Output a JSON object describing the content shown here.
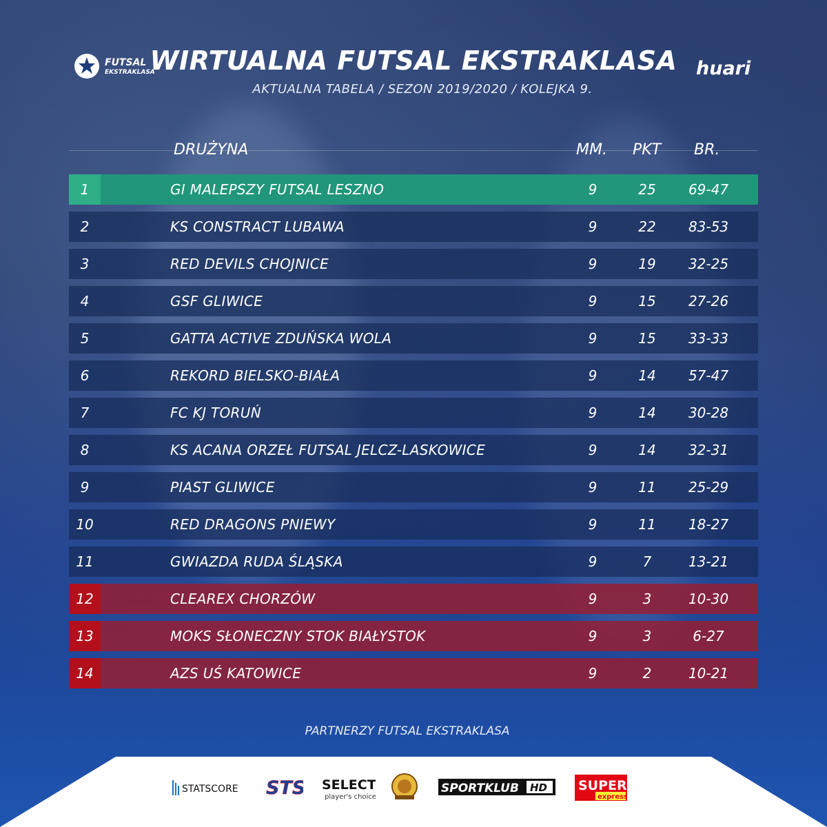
{
  "brand": {
    "league_logo_text_top": "FUTSAL",
    "league_logo_text_bottom": "EKSTRAKLASA",
    "sponsor_logo_text": "huari"
  },
  "header": {
    "title": "WIRTUALNA FUTSAL EKSTRAKLASA",
    "subtitle": "AKTUALNA TABELA  /  SEZON 2019/2020  /  KOLEJKA 9."
  },
  "table": {
    "columns": {
      "team": "DRUŻYNA",
      "mm": "MM.",
      "pkt": "PKT",
      "br": "BR."
    },
    "rows": [
      {
        "pos": "1",
        "team": "GI MALEPSZY FUTSAL LESZNO",
        "mm": "9",
        "pkt": "25",
        "br": "69-47",
        "zone": "top"
      },
      {
        "pos": "2",
        "team": "KS CONSTRACT LUBAWA",
        "mm": "9",
        "pkt": "22",
        "br": "83-53",
        "zone": "mid"
      },
      {
        "pos": "3",
        "team": "RED DEVILS CHOJNICE",
        "mm": "9",
        "pkt": "19",
        "br": "32-25",
        "zone": "mid"
      },
      {
        "pos": "4",
        "team": "GSF GLIWICE",
        "mm": "9",
        "pkt": "15",
        "br": "27-26",
        "zone": "mid"
      },
      {
        "pos": "5",
        "team": "GATTA ACTIVE ZDUŃSKA WOLA",
        "mm": "9",
        "pkt": "15",
        "br": "33-33",
        "zone": "mid"
      },
      {
        "pos": "6",
        "team": "REKORD BIELSKO-BIAŁA",
        "mm": "9",
        "pkt": "14",
        "br": "57-47",
        "zone": "mid"
      },
      {
        "pos": "7",
        "team": "FC KJ TORUŃ",
        "mm": "9",
        "pkt": "14",
        "br": "30-28",
        "zone": "mid"
      },
      {
        "pos": "8",
        "team": "KS ACANA ORZEŁ FUTSAL JELCZ-LASKOWICE",
        "mm": "9",
        "pkt": "14",
        "br": "32-31",
        "zone": "mid"
      },
      {
        "pos": "9",
        "team": "PIAST GLIWICE",
        "mm": "9",
        "pkt": "11",
        "br": "25-29",
        "zone": "mid"
      },
      {
        "pos": "10",
        "team": "RED DRAGONS PNIEWY",
        "mm": "9",
        "pkt": "11",
        "br": "18-27",
        "zone": "mid"
      },
      {
        "pos": "11",
        "team": "GWIAZDA RUDA ŚLĄSKA",
        "mm": "9",
        "pkt": "7",
        "br": "13-21",
        "zone": "mid"
      },
      {
        "pos": "12",
        "team": "CLEAREX CHORZÓW",
        "mm": "9",
        "pkt": "3",
        "br": "10-30",
        "zone": "rel"
      },
      {
        "pos": "13",
        "team": "MOKS SŁONECZNY STOK BIAŁYSTOK",
        "mm": "9",
        "pkt": "3",
        "br": "6-27",
        "zone": "rel"
      },
      {
        "pos": "14",
        "team": "AZS UŚ KATOWICE",
        "mm": "9",
        "pkt": "2",
        "br": "10-21",
        "zone": "rel"
      }
    ]
  },
  "partners": {
    "label": "PARTNERZY FUTSAL EKSTRAKLASA",
    "statscore": "STATSCORE",
    "sts": "STS",
    "select_top": "SELECT",
    "select_bottom": "player's choice",
    "sportklub": "SPORTKLUB",
    "sportklub_hd": "HD",
    "super_top": "SUPER",
    "super_bottom": "express"
  },
  "colors": {
    "top_zone": "#21967a",
    "relegation_zone": "#b3101c",
    "row_default": "#162c5a"
  }
}
